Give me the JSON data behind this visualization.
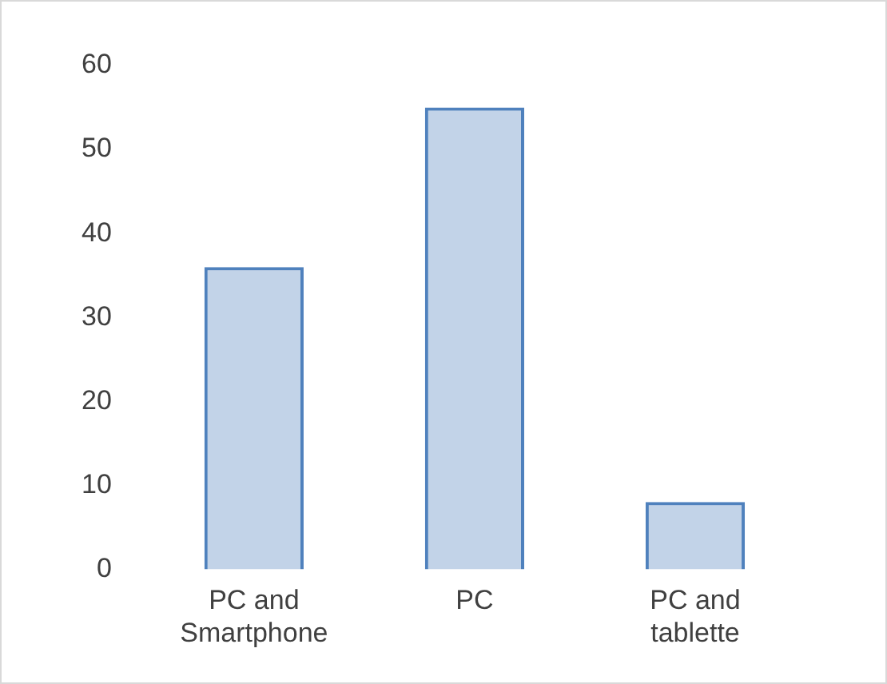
{
  "chart_data": {
    "type": "bar",
    "categories": [
      "PC and Smartphone",
      "PC",
      "PC and tablette"
    ],
    "values": [
      36,
      55,
      8
    ],
    "color": "#4f81bd",
    "ylim": [
      0,
      60
    ],
    "yticks": [
      0,
      10,
      20,
      30,
      40,
      50,
      60
    ],
    "grid": false
  }
}
